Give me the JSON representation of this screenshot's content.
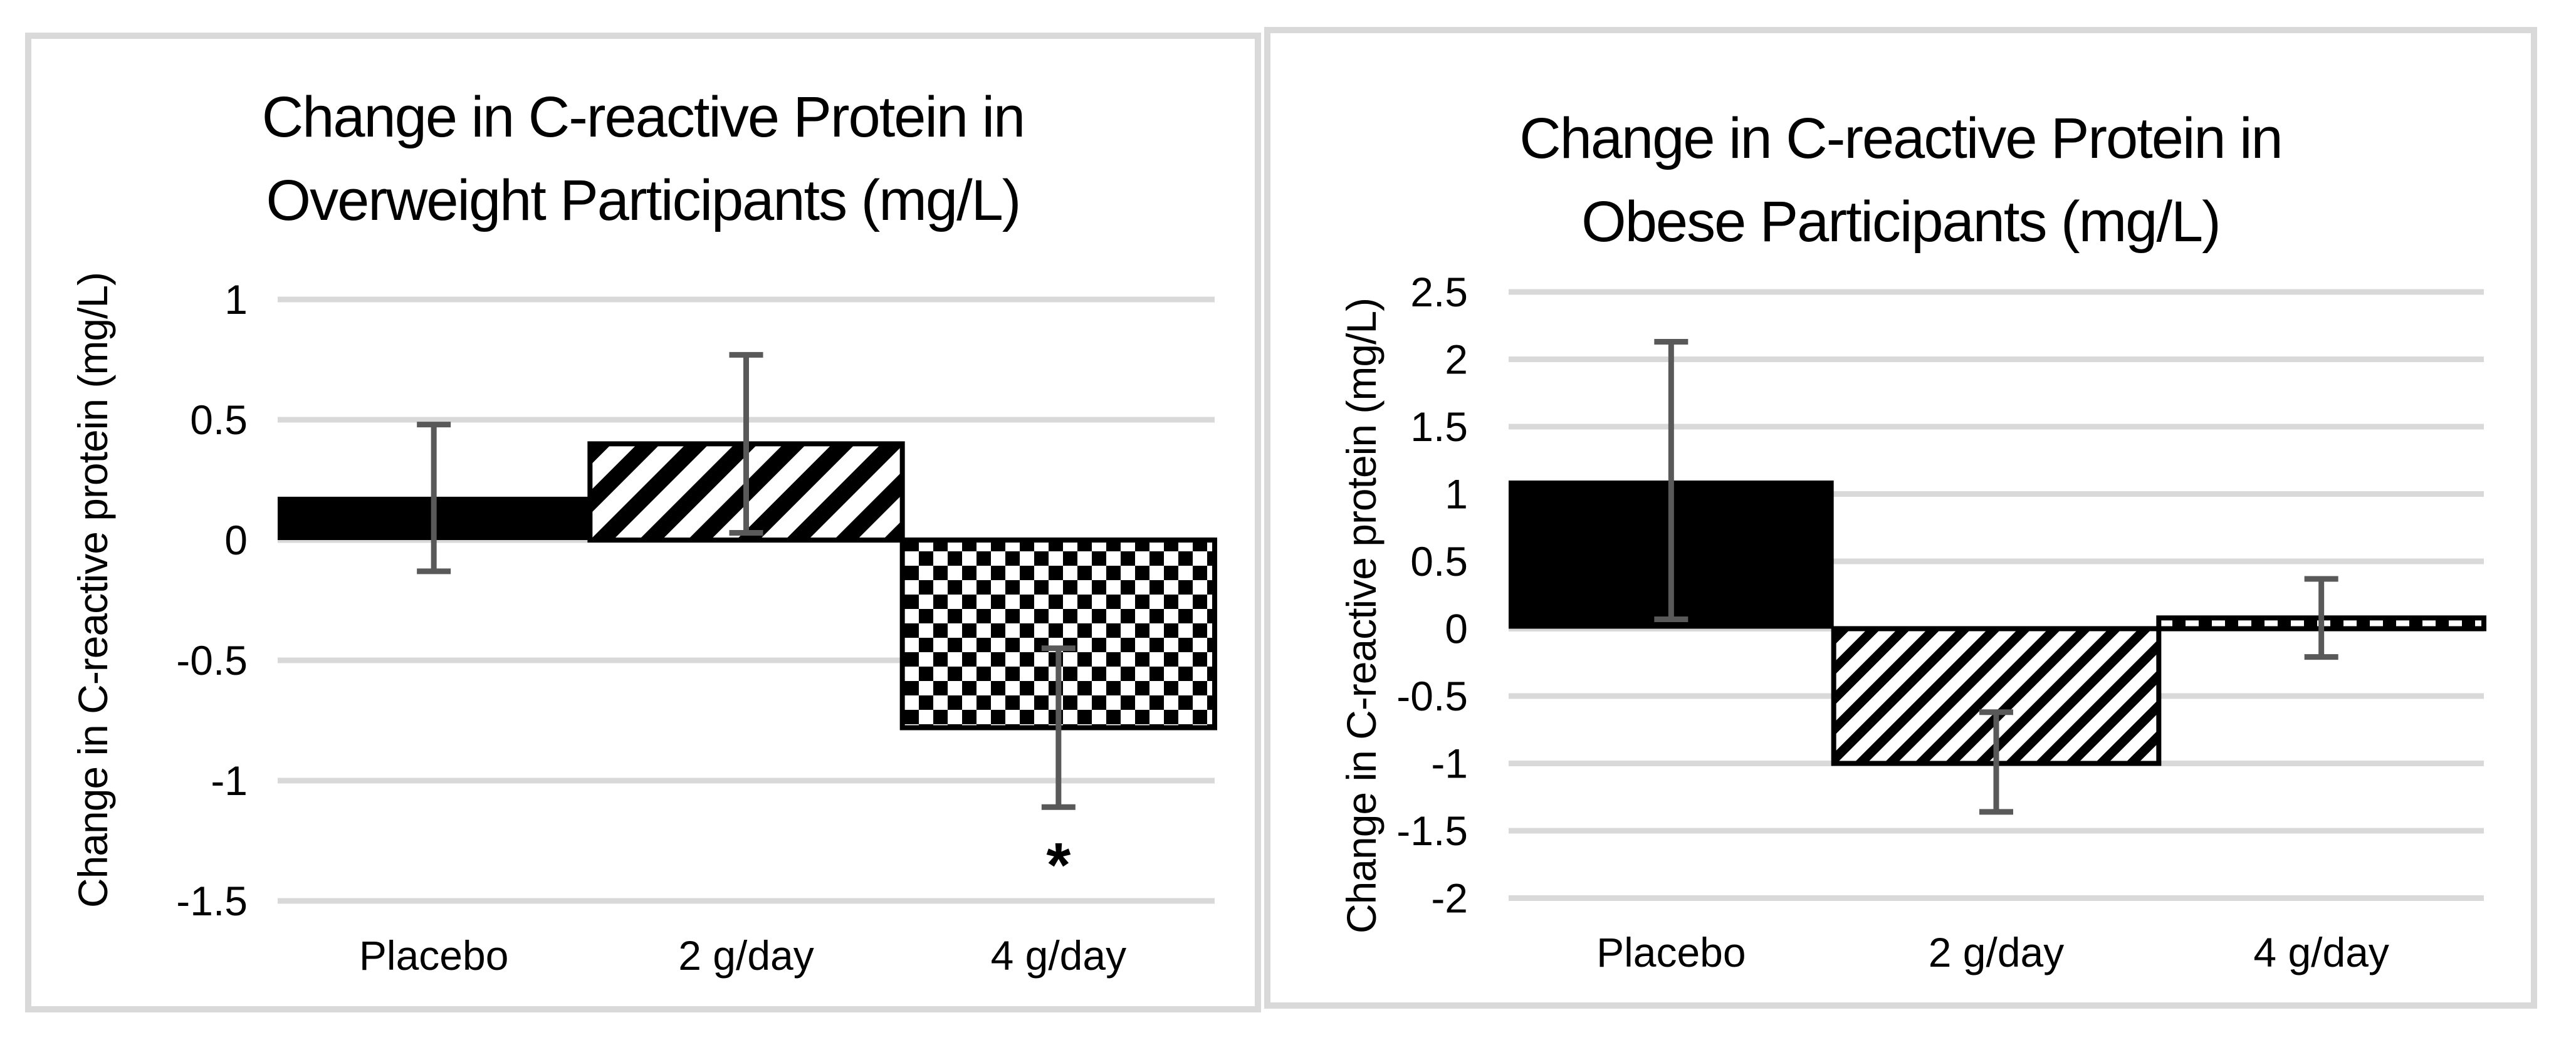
{
  "page": {
    "background_color": "#ffffff"
  },
  "style": {
    "panel_border_color": "#d9d9d9",
    "grid_color": "#d9d9d9",
    "error_bar_color": "#595959",
    "bar_color": "#000000",
    "text_color": "#000000"
  },
  "chart_data": [
    {
      "type": "bar",
      "title": "Change in C-reactive Protein in Overweight Participants (mg/L)",
      "title_lines": [
        "Change in C-reactive Protein in",
        "Overweight Participants (mg/L)"
      ],
      "ylabel": "Change in C-reactive protein (mg/L)",
      "xlabel": "",
      "categories": [
        "Placebo",
        "2 g/day",
        "4 g/day"
      ],
      "values": [
        0.18,
        0.4,
        -0.78
      ],
      "error_low": [
        -0.13,
        0.03,
        -1.11
      ],
      "error_high": [
        0.48,
        0.77,
        -0.45
      ],
      "bar_styles": [
        "solid-black",
        "diagonal-hatch",
        "checkerboard"
      ],
      "yticks": [
        1,
        0.5,
        0,
        -0.5,
        -1,
        -1.5
      ],
      "ytick_labels": [
        "1",
        "0.5",
        "0",
        "-0.5",
        "-1",
        "-1.5"
      ],
      "ylim": [
        1,
        -1.5
      ],
      "grid": true,
      "legend": "none",
      "annotations": [
        {
          "text": "*",
          "category": "4 g/day",
          "y": -1.31
        }
      ]
    },
    {
      "type": "bar",
      "title": "Change in C-reactive Protein in Obese Participants (mg/L)",
      "title_lines": [
        "Change in C-reactive Protein in",
        "Obese Participants (mg/L)"
      ],
      "ylabel": "Change in C-reactive protein (mg/L)",
      "xlabel": "",
      "categories": [
        "Placebo",
        "2 g/day",
        "4 g/day"
      ],
      "values": [
        1.1,
        -1.0,
        0.08
      ],
      "error_low": [
        0.07,
        -1.36,
        -0.21
      ],
      "error_high": [
        2.13,
        -0.62,
        0.37
      ],
      "bar_styles": [
        "solid-black",
        "diagonal-hatch",
        "checkerboard"
      ],
      "yticks": [
        2.5,
        2,
        1.5,
        1,
        0.5,
        0,
        -0.5,
        -1,
        -1.5,
        -2
      ],
      "ytick_labels": [
        "2.5",
        "2",
        "1.5",
        "1",
        "0.5",
        "0",
        "-0.5",
        "-1",
        "-1.5",
        "-2"
      ],
      "ylim": [
        2.5,
        -2
      ],
      "grid": true,
      "legend": "none",
      "annotations": []
    }
  ]
}
